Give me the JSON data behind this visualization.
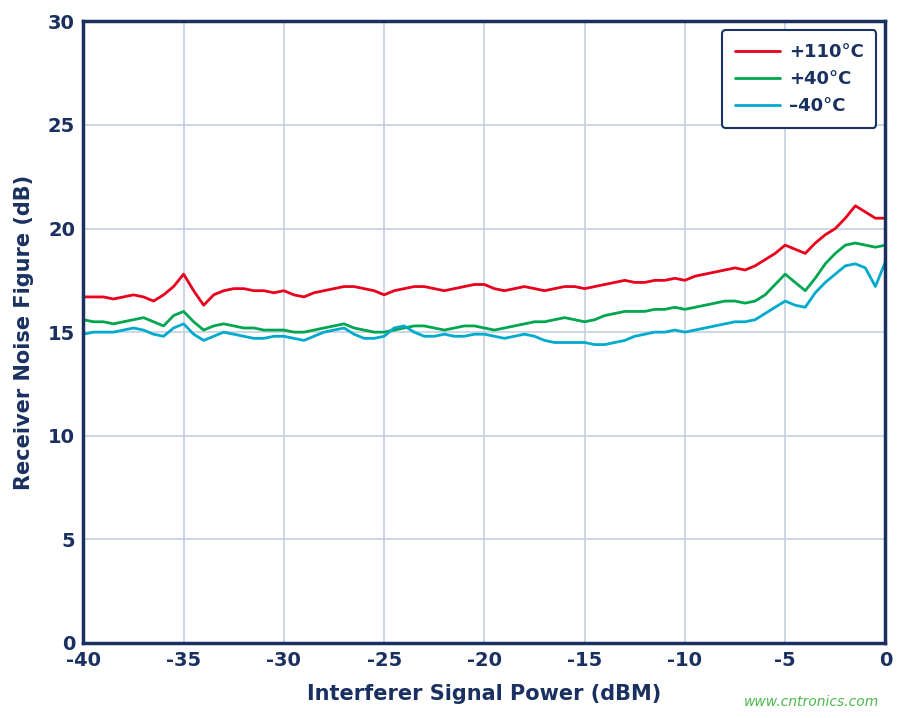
{
  "xlabel": "Interferer Signal Power (dBM)",
  "ylabel": "Receiver Noise Figure (dB)",
  "xlim": [
    -40,
    0
  ],
  "ylim": [
    0,
    30
  ],
  "xticks": [
    -40,
    -35,
    -30,
    -25,
    -20,
    -15,
    -10,
    -5,
    0
  ],
  "yticks": [
    0,
    5,
    10,
    15,
    20,
    25,
    30
  ],
  "background_color": "#ffffff",
  "plot_bg_color": "#ffffff",
  "grid_color": "#c5cfe0",
  "border_color": "#1a3060",
  "watermark": "www.cntronics.com",
  "watermark_color": "#4db84d",
  "series": [
    {
      "label": "+110°C",
      "color": "#e8001c",
      "linewidth": 2.0,
      "x": [
        -40.0,
        -39.5,
        -39.0,
        -38.5,
        -38.0,
        -37.5,
        -37.0,
        -36.5,
        -36.0,
        -35.5,
        -35.0,
        -34.5,
        -34.0,
        -33.5,
        -33.0,
        -32.5,
        -32.0,
        -31.5,
        -31.0,
        -30.5,
        -30.0,
        -29.5,
        -29.0,
        -28.5,
        -28.0,
        -27.5,
        -27.0,
        -26.5,
        -26.0,
        -25.5,
        -25.0,
        -24.5,
        -24.0,
        -23.5,
        -23.0,
        -22.5,
        -22.0,
        -21.5,
        -21.0,
        -20.5,
        -20.0,
        -19.5,
        -19.0,
        -18.5,
        -18.0,
        -17.5,
        -17.0,
        -16.5,
        -16.0,
        -15.5,
        -15.0,
        -14.5,
        -14.0,
        -13.5,
        -13.0,
        -12.5,
        -12.0,
        -11.5,
        -11.0,
        -10.5,
        -10.0,
        -9.5,
        -9.0,
        -8.5,
        -8.0,
        -7.5,
        -7.0,
        -6.5,
        -6.0,
        -5.5,
        -5.0,
        -4.5,
        -4.0,
        -3.5,
        -3.0,
        -2.5,
        -2.0,
        -1.5,
        -1.0,
        -0.5,
        0.0
      ],
      "y": [
        16.7,
        16.7,
        16.7,
        16.6,
        16.7,
        16.8,
        16.7,
        16.5,
        16.8,
        17.2,
        17.8,
        17.0,
        16.3,
        16.8,
        17.0,
        17.1,
        17.1,
        17.0,
        17.0,
        16.9,
        17.0,
        16.8,
        16.7,
        16.9,
        17.0,
        17.1,
        17.2,
        17.2,
        17.1,
        17.0,
        16.8,
        17.0,
        17.1,
        17.2,
        17.2,
        17.1,
        17.0,
        17.1,
        17.2,
        17.3,
        17.3,
        17.1,
        17.0,
        17.1,
        17.2,
        17.1,
        17.0,
        17.1,
        17.2,
        17.2,
        17.1,
        17.2,
        17.3,
        17.4,
        17.5,
        17.4,
        17.4,
        17.5,
        17.5,
        17.6,
        17.5,
        17.7,
        17.8,
        17.9,
        18.0,
        18.1,
        18.0,
        18.2,
        18.5,
        18.8,
        19.2,
        19.0,
        18.8,
        19.3,
        19.7,
        20.0,
        20.5,
        21.1,
        20.8,
        20.5,
        20.5
      ]
    },
    {
      "label": "+40°C",
      "color": "#00a550",
      "linewidth": 2.0,
      "x": [
        -40.0,
        -39.5,
        -39.0,
        -38.5,
        -38.0,
        -37.5,
        -37.0,
        -36.5,
        -36.0,
        -35.5,
        -35.0,
        -34.5,
        -34.0,
        -33.5,
        -33.0,
        -32.5,
        -32.0,
        -31.5,
        -31.0,
        -30.5,
        -30.0,
        -29.5,
        -29.0,
        -28.5,
        -28.0,
        -27.5,
        -27.0,
        -26.5,
        -26.0,
        -25.5,
        -25.0,
        -24.5,
        -24.0,
        -23.5,
        -23.0,
        -22.5,
        -22.0,
        -21.5,
        -21.0,
        -20.5,
        -20.0,
        -19.5,
        -19.0,
        -18.5,
        -18.0,
        -17.5,
        -17.0,
        -16.5,
        -16.0,
        -15.5,
        -15.0,
        -14.5,
        -14.0,
        -13.5,
        -13.0,
        -12.5,
        -12.0,
        -11.5,
        -11.0,
        -10.5,
        -10.0,
        -9.5,
        -9.0,
        -8.5,
        -8.0,
        -7.5,
        -7.0,
        -6.5,
        -6.0,
        -5.5,
        -5.0,
        -4.5,
        -4.0,
        -3.5,
        -3.0,
        -2.5,
        -2.0,
        -1.5,
        -1.0,
        -0.5,
        0.0
      ],
      "y": [
        15.6,
        15.5,
        15.5,
        15.4,
        15.5,
        15.6,
        15.7,
        15.5,
        15.3,
        15.8,
        16.0,
        15.5,
        15.1,
        15.3,
        15.4,
        15.3,
        15.2,
        15.2,
        15.1,
        15.1,
        15.1,
        15.0,
        15.0,
        15.1,
        15.2,
        15.3,
        15.4,
        15.2,
        15.1,
        15.0,
        15.0,
        15.1,
        15.2,
        15.3,
        15.3,
        15.2,
        15.1,
        15.2,
        15.3,
        15.3,
        15.2,
        15.1,
        15.2,
        15.3,
        15.4,
        15.5,
        15.5,
        15.6,
        15.7,
        15.6,
        15.5,
        15.6,
        15.8,
        15.9,
        16.0,
        16.0,
        16.0,
        16.1,
        16.1,
        16.2,
        16.1,
        16.2,
        16.3,
        16.4,
        16.5,
        16.5,
        16.4,
        16.5,
        16.8,
        17.3,
        17.8,
        17.4,
        17.0,
        17.6,
        18.3,
        18.8,
        19.2,
        19.3,
        19.2,
        19.1,
        19.2
      ]
    },
    {
      "label": "–40°C",
      "color": "#00aacc",
      "linewidth": 2.0,
      "x": [
        -40.0,
        -39.5,
        -39.0,
        -38.5,
        -38.0,
        -37.5,
        -37.0,
        -36.5,
        -36.0,
        -35.5,
        -35.0,
        -34.5,
        -34.0,
        -33.5,
        -33.0,
        -32.5,
        -32.0,
        -31.5,
        -31.0,
        -30.5,
        -30.0,
        -29.5,
        -29.0,
        -28.5,
        -28.0,
        -27.5,
        -27.0,
        -26.5,
        -26.0,
        -25.5,
        -25.0,
        -24.5,
        -24.0,
        -23.5,
        -23.0,
        -22.5,
        -22.0,
        -21.5,
        -21.0,
        -20.5,
        -20.0,
        -19.5,
        -19.0,
        -18.5,
        -18.0,
        -17.5,
        -17.0,
        -16.5,
        -16.0,
        -15.5,
        -15.0,
        -14.5,
        -14.0,
        -13.5,
        -13.0,
        -12.5,
        -12.0,
        -11.5,
        -11.0,
        -10.5,
        -10.0,
        -9.5,
        -9.0,
        -8.5,
        -8.0,
        -7.5,
        -7.0,
        -6.5,
        -6.0,
        -5.5,
        -5.0,
        -4.5,
        -4.0,
        -3.5,
        -3.0,
        -2.5,
        -2.0,
        -1.5,
        -1.0,
        -0.5,
        0.0
      ],
      "y": [
        14.9,
        15.0,
        15.0,
        15.0,
        15.1,
        15.2,
        15.1,
        14.9,
        14.8,
        15.2,
        15.4,
        14.9,
        14.6,
        14.8,
        15.0,
        14.9,
        14.8,
        14.7,
        14.7,
        14.8,
        14.8,
        14.7,
        14.6,
        14.8,
        15.0,
        15.1,
        15.2,
        14.9,
        14.7,
        14.7,
        14.8,
        15.2,
        15.3,
        15.0,
        14.8,
        14.8,
        14.9,
        14.8,
        14.8,
        14.9,
        14.9,
        14.8,
        14.7,
        14.8,
        14.9,
        14.8,
        14.6,
        14.5,
        14.5,
        14.5,
        14.5,
        14.4,
        14.4,
        14.5,
        14.6,
        14.8,
        14.9,
        15.0,
        15.0,
        15.1,
        15.0,
        15.1,
        15.2,
        15.3,
        15.4,
        15.5,
        15.5,
        15.6,
        15.9,
        16.2,
        16.5,
        16.3,
        16.2,
        16.9,
        17.4,
        17.8,
        18.2,
        18.3,
        18.1,
        17.2,
        18.4
      ]
    }
  ]
}
